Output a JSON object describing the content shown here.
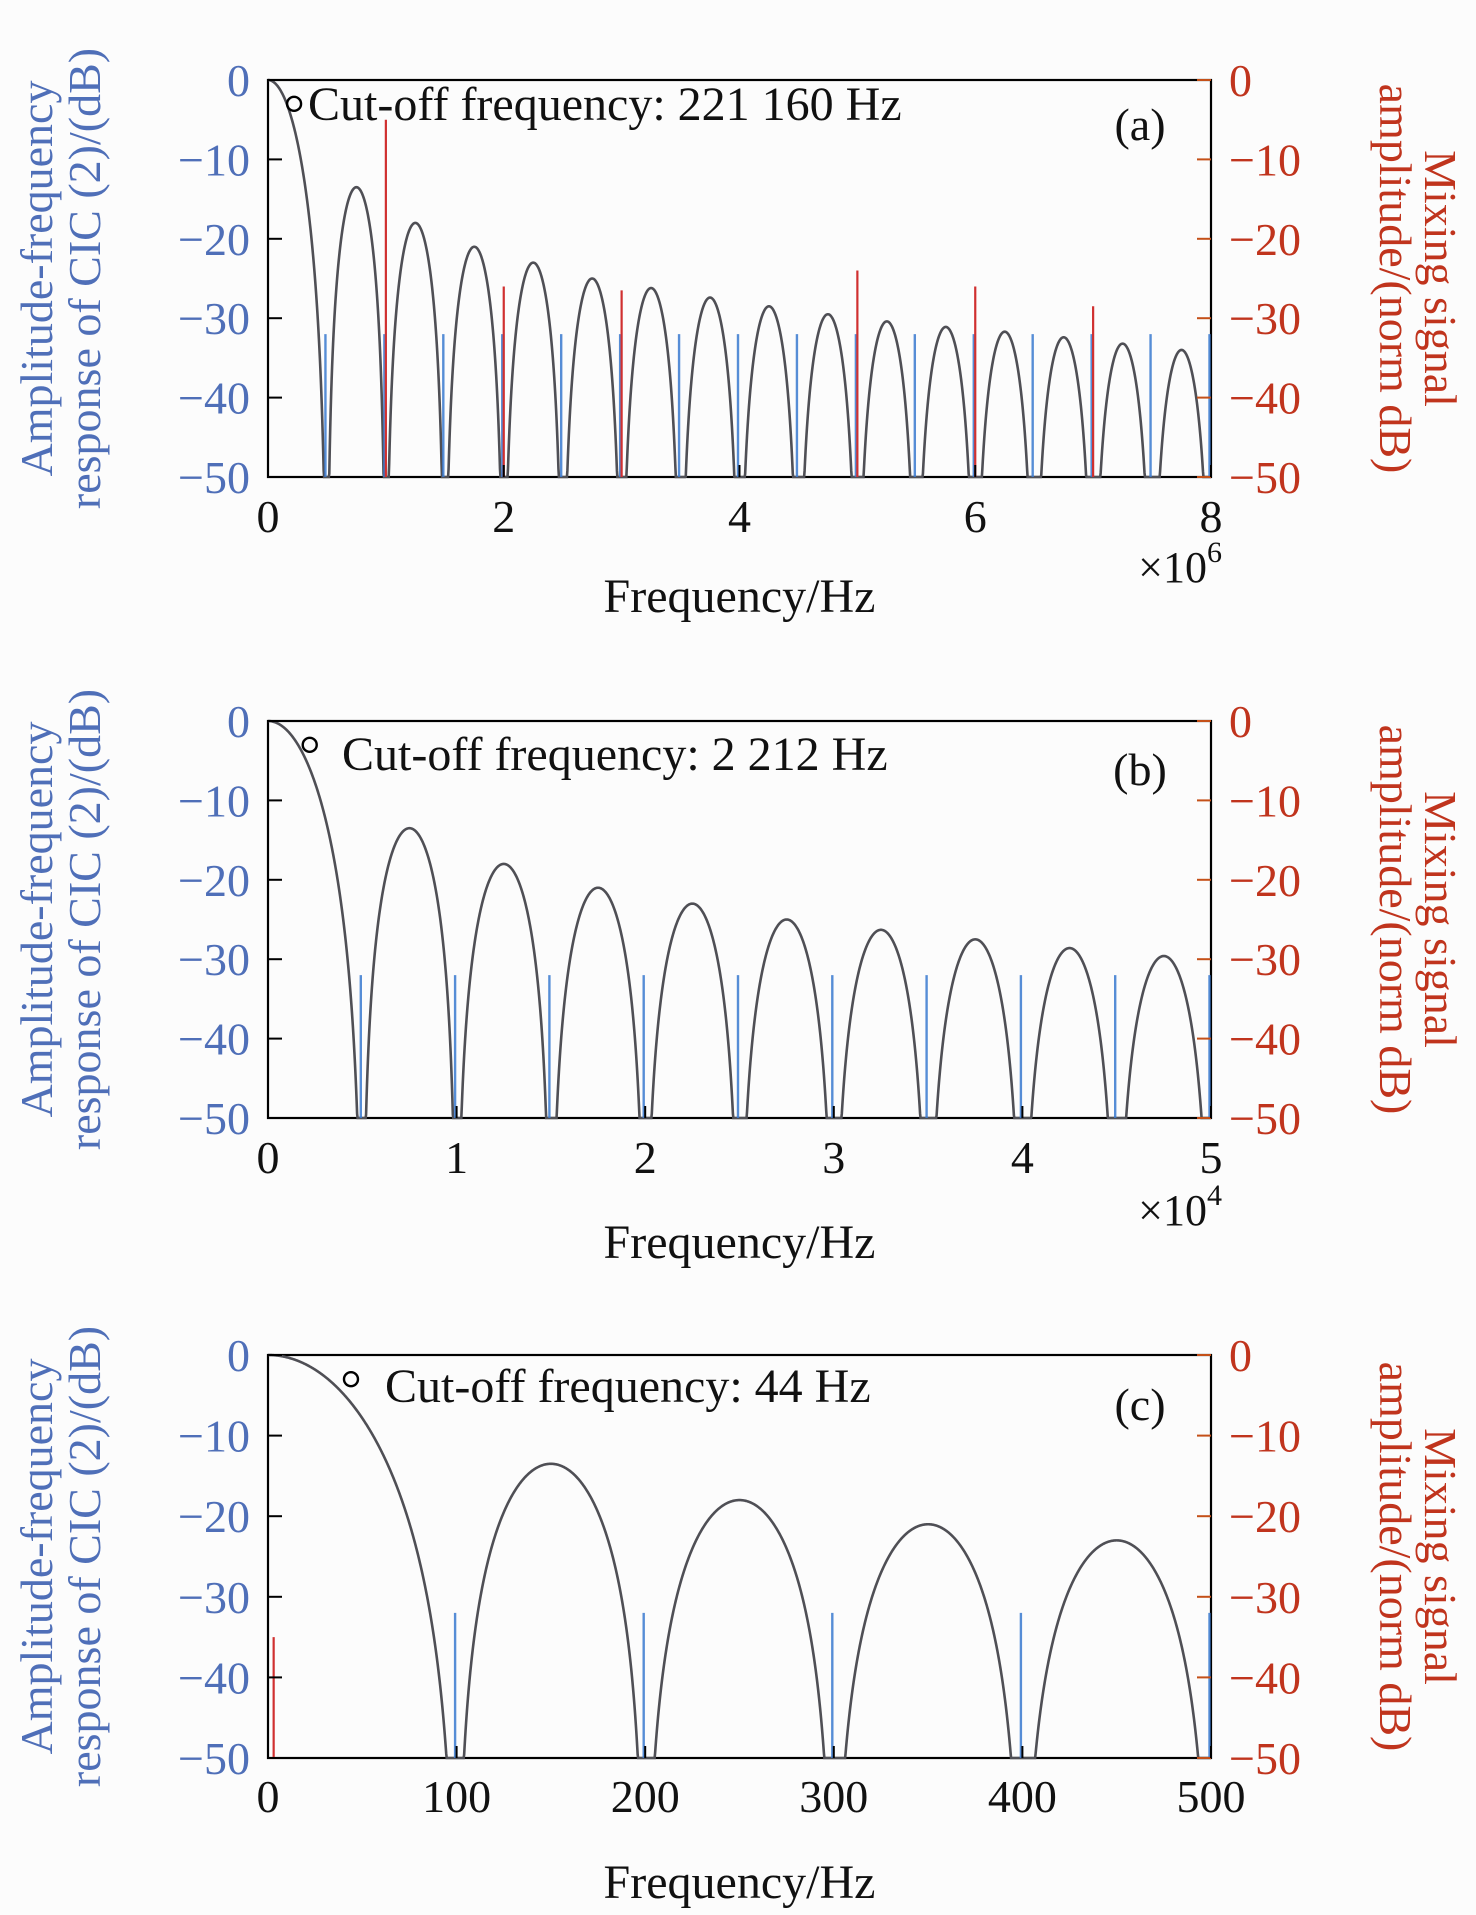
{
  "colors": {
    "background": "#fcfcfc",
    "axis": "#000000",
    "curve_dark": "#4f4f55",
    "curve_blue": "#3a7ad0",
    "left_label_blue": "#4f6fb8",
    "right_red": "#d03030",
    "right_tick_orange": "#c45018",
    "right_label": "#c0341d"
  },
  "chart_data": [
    {
      "type": "line",
      "panel_label": "(a)",
      "title": "",
      "xlabel": "Frequency/Hz",
      "x_multiplier_base": "×10",
      "x_multiplier_exp": "6",
      "xlim": [
        0,
        8
      ],
      "xticks": [
        "0",
        "2",
        "4",
        "6",
        "8"
      ],
      "ylabel_left_line1": "Amplitude-frequency",
      "ylabel_left_line2": "response of CIC (2)/(dB)",
      "ylabel_right_line1": "Mixing signal",
      "ylabel_right_line2": "amplitude/(norm dB)",
      "ylim": [
        -50,
        0
      ],
      "yticks": [
        "0",
        "−10",
        "−20",
        "−30",
        "−40",
        "−50"
      ],
      "yticks_right": [
        "0",
        "−10",
        "−20",
        "−30",
        "−40",
        "−50"
      ],
      "cic_response": {
        "null_spacing": 0.5,
        "max_freq": 8,
        "null_depth": -50,
        "lobe_peaks": [
          -13.5,
          -18,
          -21,
          -23,
          -25,
          -26.2,
          -27.4,
          -28.5,
          -29.5,
          -30.4,
          -31.1,
          -31.7,
          -32.4,
          -33.2,
          -34
        ]
      },
      "cutoff": {
        "x": 0.22116,
        "y": -3,
        "label": "Cut-off frequency: 221 160 Hz"
      },
      "mixing_signal": {
        "x": [
          1,
          2,
          3,
          5,
          6,
          7
        ],
        "y": [
          -5,
          -26,
          -26.5,
          -24,
          -26,
          -28.5
        ]
      }
    },
    {
      "type": "line",
      "panel_label": "(b)",
      "title": "",
      "xlabel": "Frequency/Hz",
      "x_multiplier_base": "×10",
      "x_multiplier_exp": "4",
      "xlim": [
        0,
        5
      ],
      "xticks": [
        "0",
        "1",
        "2",
        "3",
        "4",
        "5"
      ],
      "ylabel_left_line1": "Amplitude-frequency",
      "ylabel_left_line2": "response of CIC (2)/(dB)",
      "ylabel_right_line1": "Mixing signal",
      "ylabel_right_line2": "amplitude/(norm dB)",
      "ylim": [
        -50,
        0
      ],
      "yticks": [
        "0",
        "−10",
        "−20",
        "−30",
        "−40",
        "−50"
      ],
      "yticks_right": [
        "0",
        "−10",
        "−20",
        "−30",
        "−40",
        "−50"
      ],
      "cic_response": {
        "null_spacing": 0.5,
        "max_freq": 5,
        "null_depth": -50,
        "lobe_peaks": [
          -13.5,
          -18,
          -21,
          -23,
          -25,
          -26.3,
          -27.5,
          -28.6,
          -29.6
        ]
      },
      "cutoff": {
        "x": 0.2212,
        "y": -3,
        "label": "Cut-off frequency: 2 212 Hz"
      },
      "mixing_signal": {
        "x": [],
        "y": []
      }
    },
    {
      "type": "line",
      "panel_label": "(c)",
      "title": "",
      "xlabel": "Frequency/Hz",
      "x_multiplier_base": "",
      "x_multiplier_exp": "",
      "xlim": [
        0,
        500
      ],
      "xticks": [
        "0",
        "100",
        "200",
        "300",
        "400",
        "500"
      ],
      "ylabel_left_line1": "Amplitude-frequency",
      "ylabel_left_line2": "response of CIC (2)/(dB)",
      "ylabel_right_line1": "Mixing signal",
      "ylabel_right_line2": "amplitude/(norm dB)",
      "ylim": [
        -50,
        0
      ],
      "yticks": [
        "0",
        "−10",
        "−20",
        "−30",
        "−40",
        "−50"
      ],
      "yticks_right": [
        "0",
        "−10",
        "−20",
        "−30",
        "−40",
        "−50"
      ],
      "cic_response": {
        "null_spacing": 100,
        "max_freq": 500,
        "null_depth": -50,
        "lobe_peaks": [
          -13.5,
          -18,
          -21,
          -23
        ]
      },
      "cutoff": {
        "x": 44,
        "y": -3,
        "label": "Cut-off frequency: 44 Hz"
      },
      "mixing_signal": {
        "x": [
          3
        ],
        "y": [
          -35
        ]
      }
    }
  ]
}
